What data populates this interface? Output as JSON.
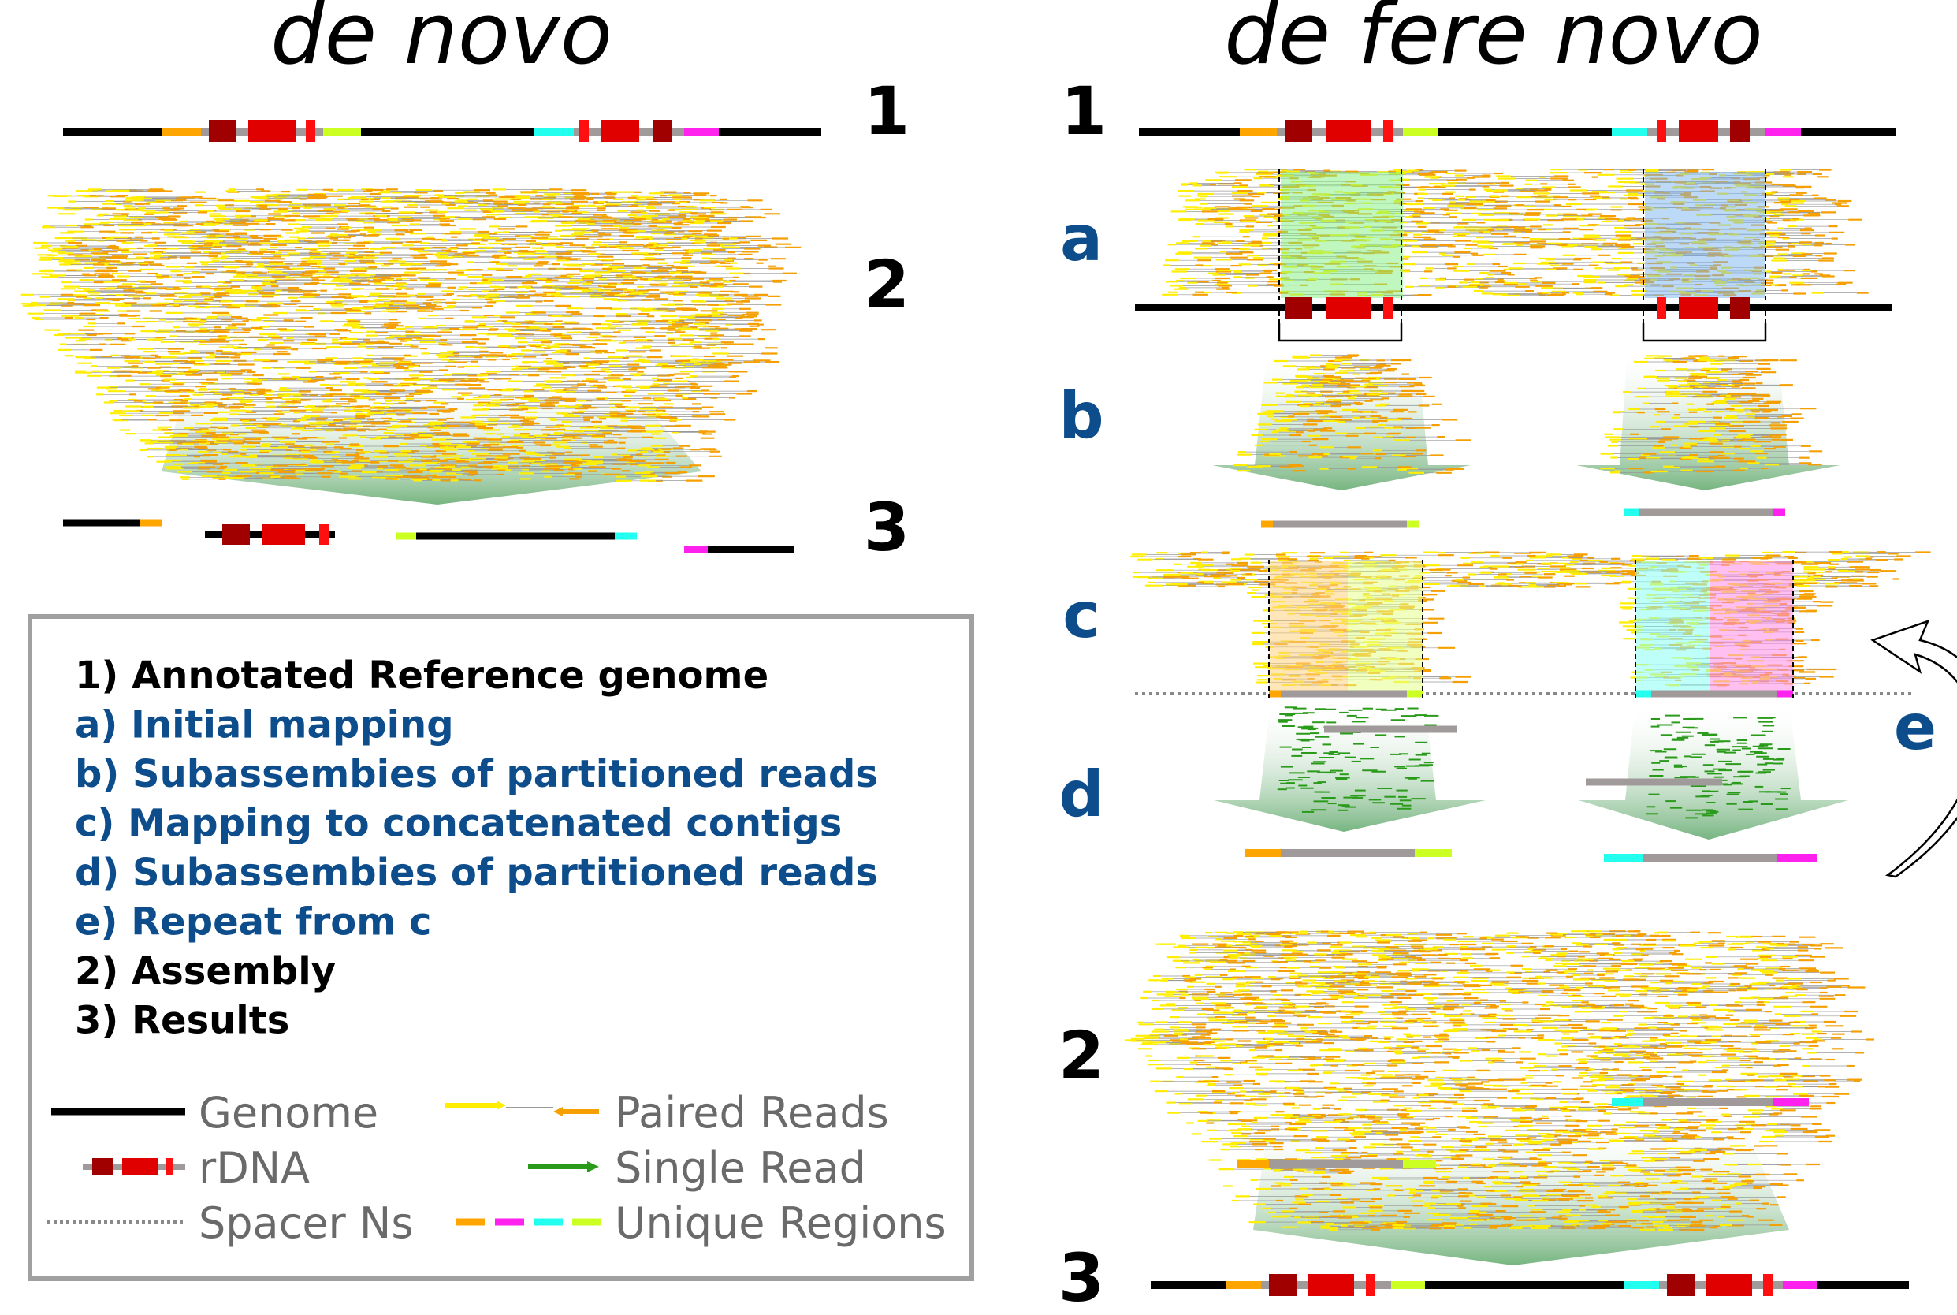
{
  "titles": {
    "left": "de novo",
    "right": "de fere novo"
  },
  "left_steps": [
    "1",
    "2",
    "3"
  ],
  "right_steps": {
    "s1": "1",
    "a": "a",
    "b": "b",
    "c": "c",
    "d": "d",
    "e": "e",
    "s2": "2",
    "s3": "3"
  },
  "legend": {
    "items": [
      {
        "text": "1) Annotated Reference genome",
        "color": "black"
      },
      {
        "text": "a) Initial mapping",
        "color": "blue"
      },
      {
        "text": "b) Subassembies of partitioned reads",
        "color": "blue"
      },
      {
        "text": "c) Mapping to concatenated contigs",
        "color": "blue"
      },
      {
        "text": "d) Subassembies of partitioned reads",
        "color": "blue"
      },
      {
        "text": "e) Repeat from c",
        "color": "blue"
      },
      {
        "text": "2) Assembly",
        "color": "black"
      },
      {
        "text": "3) Results",
        "color": "black"
      }
    ],
    "keys": {
      "genome": "Genome",
      "rdna": "rDNA",
      "spacer": "Spacer Ns",
      "paired": "Paired Reads",
      "single": "Single Read",
      "unique": "Unique Regions"
    }
  },
  "colors": {
    "step_blue": "#0e4d8c",
    "rdna_dark": "#a00000",
    "rdna_red": "#e00000",
    "orange": "#ffa500",
    "lime": "#ccff22",
    "cyan": "#22ffee",
    "magenta": "#ff22ee",
    "gray": "#a09a9a",
    "read_yellow": "#ffee00",
    "read_orange": "#f5a000",
    "single_green": "#2a9a1a"
  }
}
